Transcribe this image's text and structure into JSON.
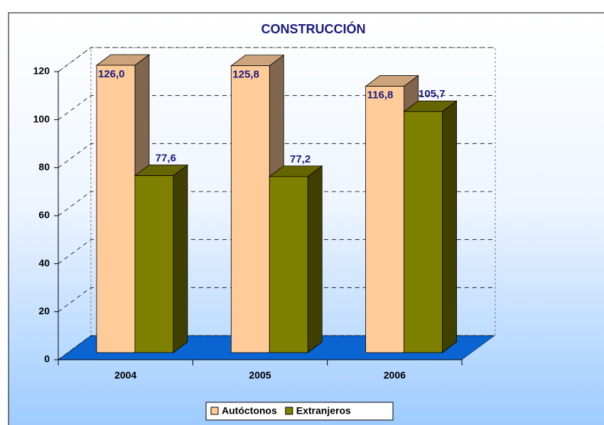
{
  "chart_data": {
    "type": "bar3d",
    "title": "CONSTRUCCIÓN",
    "categories": [
      "2004",
      "2005",
      "2006"
    ],
    "series": [
      {
        "name": "Autóctonos",
        "color": "#ffcc99",
        "values": [
          126.0,
          125.8,
          116.8
        ],
        "value_labels": [
          "126,0",
          "125,8",
          "116,8"
        ]
      },
      {
        "name": "Extranjeros",
        "color": "#808000",
        "values": [
          77.6,
          77.2,
          105.7
        ],
        "value_labels": [
          "77,6",
          "77,2",
          "105,7"
        ]
      }
    ],
    "ylim": [
      0,
      120
    ],
    "yticks": [
      0,
      20,
      40,
      60,
      80,
      100,
      120
    ],
    "grid": true,
    "legend": "bottom"
  }
}
